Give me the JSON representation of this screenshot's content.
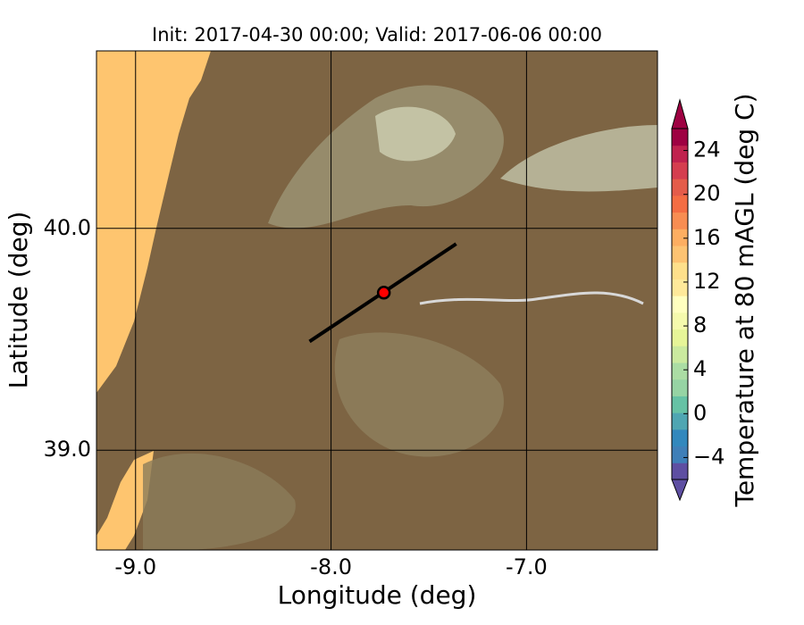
{
  "chart_data": {
    "type": "map",
    "title": "Init: 2017-04-30 00:00; Valid: 2017-06-06 00:00",
    "xlabel": "Longitude (deg)",
    "ylabel": "Latitude (deg)",
    "xlim": [
      -9.2,
      -6.33
    ],
    "ylim": [
      38.55,
      40.8
    ],
    "xticks": [
      {
        "value": -9,
        "label": "-9.0"
      },
      {
        "value": -8,
        "label": "-8.0"
      },
      {
        "value": -7,
        "label": "-7.0"
      }
    ],
    "yticks": [
      {
        "value": 39,
        "label": "39.0"
      },
      {
        "value": 40,
        "label": "40.0"
      }
    ],
    "grid": true,
    "transect": {
      "x": [
        -8.11,
        -7.36
      ],
      "y": [
        39.49,
        39.93
      ],
      "color": "#000000"
    },
    "site": {
      "x": -7.73,
      "y": 39.71,
      "color": "#ff0000"
    },
    "colorbar": {
      "label": "Temperature at 80 mAGL (deg C)",
      "lim": [
        -6,
        26
      ],
      "ticks": [
        {
          "value": -4,
          "label": "−4"
        },
        0,
        4,
        8,
        12,
        16,
        20,
        24
      ],
      "colors": [
        "#5e4fa2",
        "#3f7fb8",
        "#3288bd",
        "#4fa6b2",
        "#66c2a5",
        "#96d4a4",
        "#abdda4",
        "#cbea9f",
        "#e6f598",
        "#f5faad",
        "#ffffbf",
        "#fee99a",
        "#fee08b",
        "#fdc372",
        "#fdae61",
        "#f88d52",
        "#f46d43",
        "#e45c4a",
        "#d53e4f",
        "#c0224e",
        "#9e0142"
      ]
    }
  }
}
